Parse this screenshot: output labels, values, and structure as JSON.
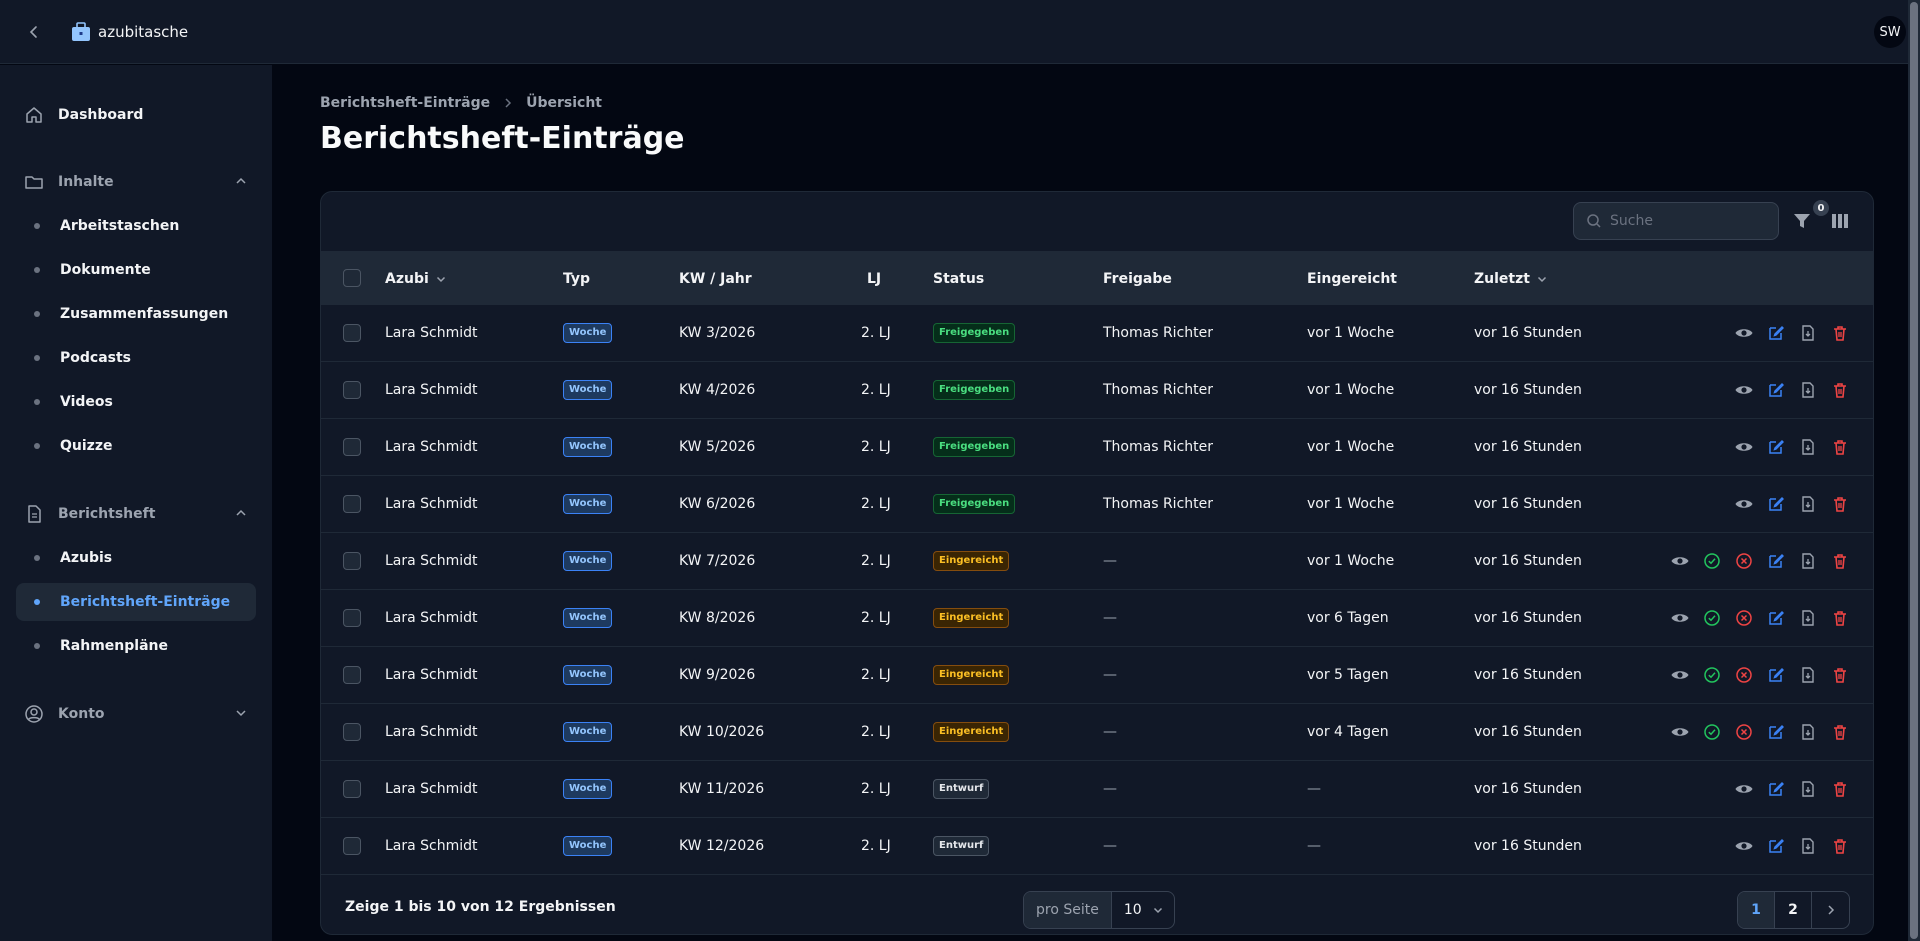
{
  "app": {
    "name": "azubitasche",
    "user_initials": "SW"
  },
  "sidebar": {
    "dashboard": "Dashboard",
    "groups": [
      {
        "label": "Inhalte",
        "items": [
          "Arbeitstaschen",
          "Dokumente",
          "Zusammenfassungen",
          "Podcasts",
          "Videos",
          "Quizze"
        ]
      },
      {
        "label": "Berichtsheft",
        "items": [
          "Azubis",
          "Berichtsheft-Einträge",
          "Rahmenpläne"
        ],
        "active": "Berichtsheft-Einträge"
      },
      {
        "label": "Konto",
        "items": []
      }
    ]
  },
  "breadcrumb": [
    "Berichtsheft-Einträge",
    "Übersicht"
  ],
  "page_title": "Berichtsheft-Einträge",
  "toolbar": {
    "search_placeholder": "Suche",
    "filter_count": "0"
  },
  "table": {
    "columns": [
      "Azubi",
      "Typ",
      "KW / Jahr",
      "LJ",
      "Status",
      "Freigabe",
      "Eingereicht",
      "Zuletzt"
    ],
    "rows": [
      {
        "azubi": "Lara Schmidt",
        "typ": "Woche",
        "kw": "KW 3/2026",
        "lj": "2. LJ",
        "status": "Freigegeben",
        "freigabe": "Thomas Richter",
        "eingereicht": "vor 1 Woche",
        "zuletzt": "vor 16 Stunden"
      },
      {
        "azubi": "Lara Schmidt",
        "typ": "Woche",
        "kw": "KW 4/2026",
        "lj": "2. LJ",
        "status": "Freigegeben",
        "freigabe": "Thomas Richter",
        "eingereicht": "vor 1 Woche",
        "zuletzt": "vor 16 Stunden"
      },
      {
        "azubi": "Lara Schmidt",
        "typ": "Woche",
        "kw": "KW 5/2026",
        "lj": "2. LJ",
        "status": "Freigegeben",
        "freigabe": "Thomas Richter",
        "eingereicht": "vor 1 Woche",
        "zuletzt": "vor 16 Stunden"
      },
      {
        "azubi": "Lara Schmidt",
        "typ": "Woche",
        "kw": "KW 6/2026",
        "lj": "2. LJ",
        "status": "Freigegeben",
        "freigabe": "Thomas Richter",
        "eingereicht": "vor 1 Woche",
        "zuletzt": "vor 16 Stunden"
      },
      {
        "azubi": "Lara Schmidt",
        "typ": "Woche",
        "kw": "KW 7/2026",
        "lj": "2. LJ",
        "status": "Eingereicht",
        "freigabe": "—",
        "eingereicht": "vor 1 Woche",
        "zuletzt": "vor 16 Stunden"
      },
      {
        "azubi": "Lara Schmidt",
        "typ": "Woche",
        "kw": "KW 8/2026",
        "lj": "2. LJ",
        "status": "Eingereicht",
        "freigabe": "—",
        "eingereicht": "vor 6 Tagen",
        "zuletzt": "vor 16 Stunden"
      },
      {
        "azubi": "Lara Schmidt",
        "typ": "Woche",
        "kw": "KW 9/2026",
        "lj": "2. LJ",
        "status": "Eingereicht",
        "freigabe": "—",
        "eingereicht": "vor 5 Tagen",
        "zuletzt": "vor 16 Stunden"
      },
      {
        "azubi": "Lara Schmidt",
        "typ": "Woche",
        "kw": "KW 10/2026",
        "lj": "2. LJ",
        "status": "Eingereicht",
        "freigabe": "—",
        "eingereicht": "vor 4 Tagen",
        "zuletzt": "vor 16 Stunden"
      },
      {
        "azubi": "Lara Schmidt",
        "typ": "Woche",
        "kw": "KW 11/2026",
        "lj": "2. LJ",
        "status": "Entwurf",
        "freigabe": "—",
        "eingereicht": "—",
        "zuletzt": "vor 16 Stunden"
      },
      {
        "azubi": "Lara Schmidt",
        "typ": "Woche",
        "kw": "KW 12/2026",
        "lj": "2. LJ",
        "status": "Entwurf",
        "freigabe": "—",
        "eingereicht": "—",
        "zuletzt": "vor 16 Stunden"
      }
    ]
  },
  "footer": {
    "summary": "Zeige 1 bis 10 von 12 Ergebnissen",
    "per_page_label": "pro Seite",
    "per_page_value": "10",
    "pages": [
      "1",
      "2"
    ],
    "current_page": "1"
  },
  "colors": {
    "accent": "#60a5fa",
    "danger": "#ef4444",
    "success": "#22c55e",
    "warning": "#f59e0b"
  }
}
